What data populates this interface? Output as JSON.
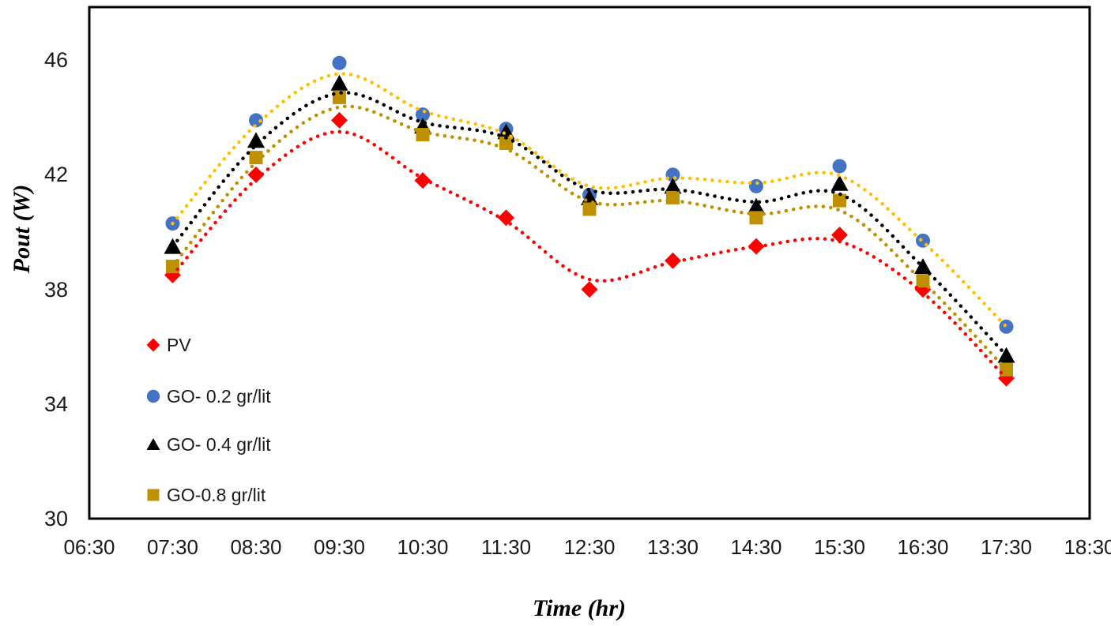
{
  "chart_data": {
    "type": "scatter",
    "title": "",
    "xlabel": "Time (hr)",
    "ylabel": "Pout (W)",
    "grid": false,
    "legend_position": "inside-left",
    "xlim": [
      6.5,
      18.5
    ],
    "ylim": [
      30,
      47.85
    ],
    "y_ticks": [
      30,
      34,
      38,
      42,
      46
    ],
    "x_tick_labels": [
      "06:30",
      "07:30",
      "08:30",
      "09:30",
      "10:30",
      "11:30",
      "12:30",
      "13:30",
      "14:30",
      "15:30",
      "16:30",
      "17:30",
      "18:30"
    ],
    "x_tick_hours": [
      6.5,
      7.5,
      8.5,
      9.5,
      10.5,
      11.5,
      12.5,
      13.5,
      14.5,
      15.5,
      16.5,
      17.5,
      18.5
    ],
    "categories": [
      "07:30",
      "08:30",
      "09:30",
      "10:30",
      "11:30",
      "12:30",
      "13:30",
      "14:30",
      "15:30",
      "16:30",
      "17:30"
    ],
    "x_hours": [
      7.5,
      8.5,
      9.5,
      10.5,
      11.5,
      12.5,
      13.5,
      14.5,
      15.5,
      16.5,
      17.5
    ],
    "trendline_style": "dotted",
    "series": [
      {
        "name": "PV",
        "marker": "diamond",
        "marker_color": "#FF0000",
        "trendline_color": "#FF0000",
        "values": [
          38.5,
          42.0,
          43.9,
          41.8,
          40.5,
          38.0,
          39.0,
          39.5,
          39.9,
          38.0,
          34.9
        ]
      },
      {
        "name": "GO- 0.2 gr/lit",
        "marker": "circle",
        "marker_color": "#4472C4",
        "trendline_color": "#FFC000",
        "values": [
          40.3,
          43.9,
          45.9,
          44.1,
          43.6,
          41.3,
          42.0,
          41.6,
          42.3,
          39.7,
          36.7
        ]
      },
      {
        "name": "GO- 0.4 gr/lit",
        "marker": "triangle",
        "marker_color": "#000000",
        "trendline_color": "#000000",
        "values": [
          39.5,
          43.2,
          45.2,
          43.7,
          43.5,
          41.2,
          41.6,
          40.9,
          41.7,
          38.8,
          35.7
        ]
      },
      {
        "name": "GO-0.8 gr/lit",
        "marker": "square",
        "marker_color": "#BF9000",
        "trendline_color": "#BF9000",
        "values": [
          38.8,
          42.6,
          44.7,
          43.4,
          43.1,
          40.8,
          41.2,
          40.5,
          41.1,
          38.3,
          35.2
        ]
      }
    ],
    "frame_color": "#000000",
    "tick_text_color": "#1a1a1a"
  }
}
